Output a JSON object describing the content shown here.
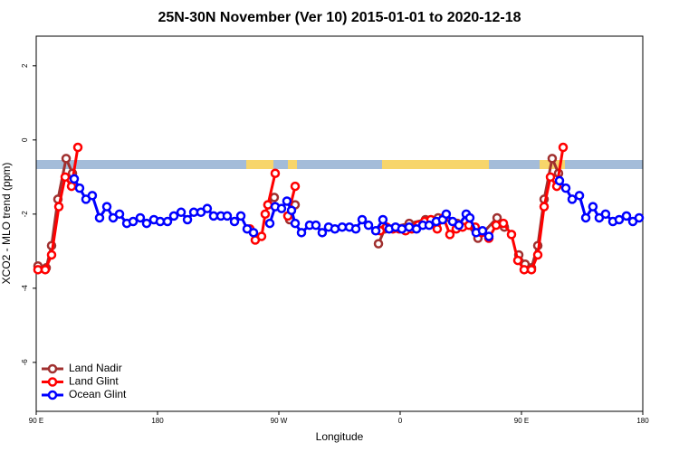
{
  "chart_data": {
    "type": "line",
    "title": "25N-30N November (Ver 10)   2015-01-01 to 2020-12-18",
    "xlabel": "Longitude",
    "ylabel": "XCO2 - MLO trend (ppm)",
    "xlim": [
      90,
      540
    ],
    "xticks": [
      {
        "value": 90,
        "label": "90 E"
      },
      {
        "value": 180,
        "label": "180"
      },
      {
        "value": 270,
        "label": "90 W"
      },
      {
        "value": 360,
        "label": "0"
      },
      {
        "value": 450,
        "label": "90 E"
      },
      {
        "value": 540,
        "label": "180"
      }
    ],
    "ylim": [
      -7.32,
      2.8
    ],
    "yticks": [
      2,
      0,
      -2,
      -4,
      -6
    ],
    "legend": "bottom-left",
    "series": [
      {
        "name": "Land Nadir",
        "color": "#a0302f",
        "x": [
          91.3,
          97.4,
          101.4,
          106.1,
          112.2,
          116.9,
          null,
          261.9,
          266.6,
          null,
          278.0,
          282.1,
          null,
          343.9,
          348.6,
          366.7,
          378.8,
          388.2,
          402.3,
          408.3,
          417.7,
          431.9,
          437.3,
          null,
          448.0,
          452.7,
          457.4,
          462.1,
          466.8,
          472.8,
          477.5
        ],
        "values": [
          -3.4,
          -3.45,
          -2.85,
          -1.6,
          -0.5,
          -0.9,
          null,
          -1.75,
          -1.55,
          null,
          -2.15,
          -1.75,
          null,
          -2.8,
          -2.4,
          -2.25,
          -2.15,
          -2.1,
          -2.25,
          -2.2,
          -2.65,
          -2.1,
          -2.35,
          null,
          -3.1,
          -3.35,
          -3.45,
          -2.85,
          -1.6,
          -0.5,
          -0.9
        ]
      },
      {
        "name": "Land Glint",
        "color": "#ff0000",
        "x": [
          91.3,
          96.7,
          101.4,
          106.8,
          111.5,
          116.2,
          120.9,
          null,
          248.5,
          252.5,
          257.2,
          259.9,
          261.9,
          267.3,
          null,
          276.7,
          282.1,
          null,
          345.2,
          349.9,
          354.6,
          359.3,
          364.0,
          368.7,
          373.4,
          378.1,
          382.8,
          387.5,
          392.2,
          396.9,
          401.6,
          406.3,
          411.0,
          415.7,
          420.4,
          425.8,
          431.2,
          436.6,
          442.6,
          447.3,
          452.0,
          457.4,
          462.1,
          466.8,
          471.5,
          476.2,
          480.9
        ],
        "values": [
          -3.5,
          -3.5,
          -3.1,
          -1.8,
          -1.0,
          -1.25,
          -0.2,
          null,
          -2.4,
          -2.7,
          -2.6,
          -2.0,
          -1.75,
          -0.9,
          null,
          -2.05,
          -1.25,
          null,
          -2.45,
          -2.35,
          -2.4,
          -2.4,
          -2.45,
          -2.4,
          -2.3,
          -2.2,
          -2.15,
          -2.4,
          -2.1,
          -2.55,
          -2.4,
          -2.35,
          -2.3,
          -2.35,
          -2.5,
          -2.65,
          -2.3,
          -2.25,
          -2.55,
          -3.25,
          -3.5,
          -3.5,
          -3.1,
          -1.8,
          -1.0,
          -1.25,
          -0.2
        ]
      },
      {
        "name": "Ocean Glint",
        "color": "#0000ff",
        "x": [
          118.2,
          122.2,
          126.9,
          131.6,
          137.0,
          142.4,
          147.1,
          151.8,
          157.2,
          161.9,
          167.2,
          171.9,
          177.3,
          182.0,
          187.4,
          192.1,
          197.5,
          202.2,
          206.9,
          212.2,
          216.9,
          221.6,
          227.0,
          231.7,
          237.1,
          241.8,
          246.5,
          251.2,
          null,
          263.3,
          267.3,
          272.0,
          276.0,
          279.4,
          282.1,
          286.8,
          292.8,
          297.5,
          302.2,
          306.9,
          311.6,
          317.0,
          322.4,
          327.1,
          331.8,
          336.5,
          341.9,
          347.2,
          351.9,
          356.6,
          361.3,
          366.7,
          372.1,
          376.8,
          381.5,
          386.8,
          391.5,
          394.2,
          398.9,
          403.6,
          409.0,
          411.7,
          416.4,
          421.1,
          425.8,
          null,
          478.2,
          482.9,
          487.6,
          493.0,
          497.7,
          503.0,
          507.7,
          512.4,
          517.8,
          522.5,
          527.9,
          532.6,
          537.3
        ],
        "values": [
          -1.05,
          -1.3,
          -1.6,
          -1.5,
          -2.1,
          -1.8,
          -2.1,
          -2.0,
          -2.25,
          -2.2,
          -2.1,
          -2.25,
          -2.15,
          -2.2,
          -2.2,
          -2.05,
          -1.95,
          -2.15,
          -1.95,
          -1.95,
          -1.85,
          -2.05,
          -2.05,
          -2.05,
          -2.2,
          -2.05,
          -2.4,
          -2.5,
          null,
          -2.25,
          -1.8,
          -1.85,
          -1.65,
          -1.9,
          -2.25,
          -2.5,
          -2.3,
          -2.3,
          -2.5,
          -2.35,
          -2.4,
          -2.35,
          -2.35,
          -2.4,
          -2.15,
          -2.3,
          -2.45,
          -2.15,
          -2.4,
          -2.35,
          -2.4,
          -2.35,
          -2.4,
          -2.3,
          -2.3,
          -2.2,
          -2.15,
          -2.0,
          -2.2,
          -2.3,
          -2.0,
          -2.1,
          -2.5,
          -2.45,
          -2.6,
          null,
          -1.1,
          -1.3,
          -1.6,
          -1.5,
          -2.1,
          -1.8,
          -2.1,
          -2.0,
          -2.2,
          -2.15,
          -2.05,
          -2.2,
          -2.1
        ]
      }
    ]
  }
}
